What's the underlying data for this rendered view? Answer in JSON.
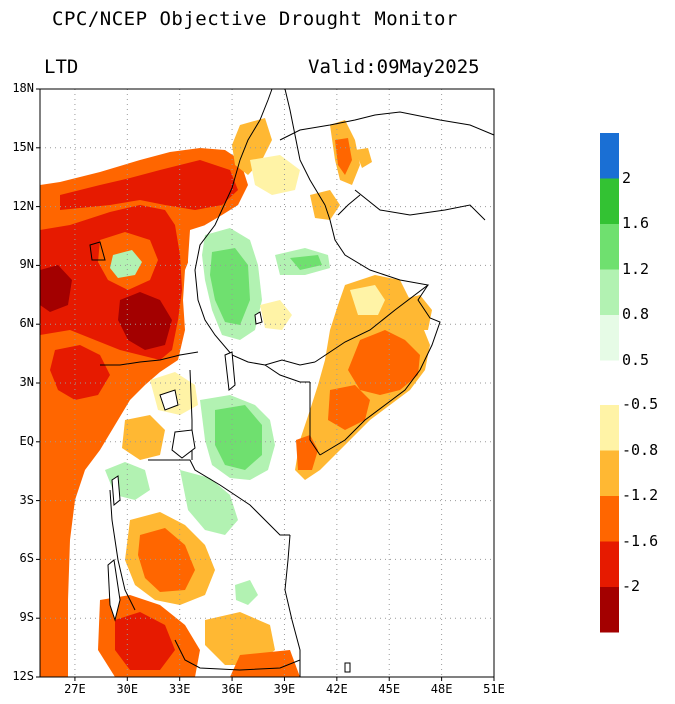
{
  "header": {
    "title": "CPC/NCEP Objective Drought Monitor",
    "left_label": "LTD",
    "valid_label": "Valid:09May2025"
  },
  "axes": {
    "lat_labels": [
      "18N",
      "15N",
      "12N",
      "9N",
      "6N",
      "3N",
      "EQ",
      "3S",
      "6S",
      "9S",
      "12S"
    ],
    "lon_labels": [
      "27E",
      "30E",
      "33E",
      "36E",
      "39E",
      "42E",
      "45E",
      "48E",
      "51E"
    ],
    "lat_range": [
      -12,
      18
    ],
    "lon_range": [
      25,
      51
    ]
  },
  "colorbar": {
    "wet_labels": [
      "2",
      "1.6",
      "1.2",
      "0.8",
      "0.5"
    ],
    "dry_labels": [
      "-0.5",
      "-0.8",
      "-1.2",
      "-1.6",
      "-2"
    ],
    "wet_colors": [
      "#1a6fd4",
      "#33c233",
      "#6fe06f",
      "#b2f2b2",
      "#e6fbe6"
    ],
    "dry_colors": [
      "#fff3a6",
      "#ffb833",
      "#ff6600",
      "#e61a00",
      "#a30000"
    ]
  }
}
